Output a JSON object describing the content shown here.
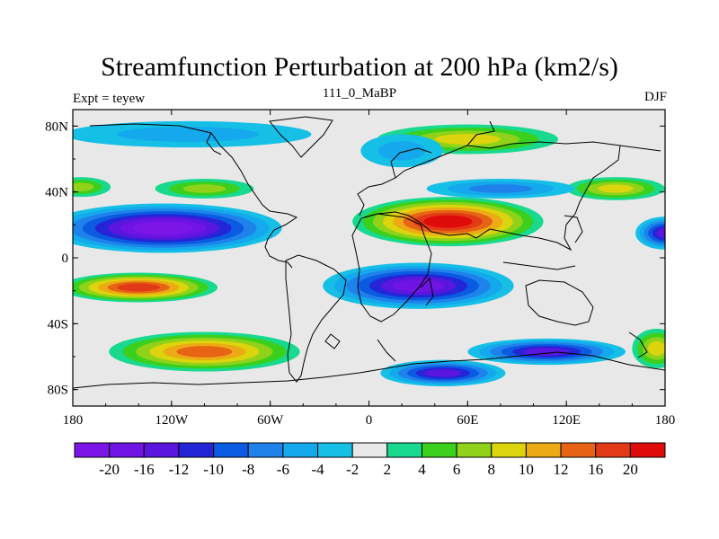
{
  "chart_data": {
    "type": "heatmap",
    "title": "Streamfunction Perturbation at 200 hPa (km2/s)",
    "left_string": "Expt = teyew",
    "center_string": "111_0_MaBP",
    "right_string": "DJF",
    "x_range": [
      -180,
      180
    ],
    "y_range": [
      -90,
      90
    ],
    "x_ticks": [
      {
        "value": -180,
        "label": "180"
      },
      {
        "value": -120,
        "label": "120W"
      },
      {
        "value": -60,
        "label": "60W"
      },
      {
        "value": 0,
        "label": "0"
      },
      {
        "value": 60,
        "label": "60E"
      },
      {
        "value": 120,
        "label": "120E"
      },
      {
        "value": 180,
        "label": "180"
      }
    ],
    "y_ticks": [
      {
        "value": 80,
        "label": "80N"
      },
      {
        "value": 40,
        "label": "40N"
      },
      {
        "value": 0,
        "label": "0"
      },
      {
        "value": -40,
        "label": "40S"
      },
      {
        "value": -80,
        "label": "80S"
      }
    ],
    "levels": [
      -20,
      -16,
      -12,
      -10,
      -8,
      -6,
      -4,
      -2,
      2,
      4,
      6,
      8,
      10,
      12,
      16,
      20
    ],
    "colors": [
      "#7b16e6",
      "#6f14e2",
      "#5a16dc",
      "#2525d8",
      "#0a5ae2",
      "#1f82ea",
      "#14a8ec",
      "#16bfe6",
      "#e8e8e8",
      "#18d98e",
      "#3ad01d",
      "#90d21a",
      "#dcd40c",
      "#ecaa14",
      "#e66414",
      "#e23a16",
      "#e00c0c"
    ],
    "features": [
      {
        "lon": -125,
        "lat": 18,
        "rx": 72,
        "ry": 15,
        "value": -20
      },
      {
        "lon": 48,
        "lat": 22,
        "rx": 58,
        "ry": 15,
        "value": 22
      },
      {
        "lon": 30,
        "lat": -17,
        "rx": 58,
        "ry": 14,
        "value": -18
      },
      {
        "lon": -140,
        "lat": -18,
        "rx": 48,
        "ry": 9,
        "value": 16
      },
      {
        "lon": -100,
        "lat": -57,
        "rx": 58,
        "ry": 12,
        "value": 14
      },
      {
        "lon": 108,
        "lat": -57,
        "rx": 48,
        "ry": 8,
        "value": -12
      },
      {
        "lon": 45,
        "lat": -70,
        "rx": 38,
        "ry": 8,
        "value": -14
      },
      {
        "lon": 60,
        "lat": 72,
        "rx": 55,
        "ry": 9,
        "value": 9
      },
      {
        "lon": 150,
        "lat": 42,
        "rx": 30,
        "ry": 7,
        "value": 8
      },
      {
        "lon": -175,
        "lat": 43,
        "rx": 18,
        "ry": 6,
        "value": 7
      },
      {
        "lon": -100,
        "lat": 42,
        "rx": 30,
        "ry": 6,
        "value": 6
      },
      {
        "lon": 180,
        "lat": 15,
        "rx": 18,
        "ry": 10,
        "value": -12
      },
      {
        "lon": -110,
        "lat": 75,
        "rx": 75,
        "ry": 8,
        "value": -5
      },
      {
        "lon": 80,
        "lat": 42,
        "rx": 45,
        "ry": 6,
        "value": -6
      },
      {
        "lon": 175,
        "lat": -55,
        "rx": 15,
        "ry": 12,
        "value": 8
      },
      {
        "lon": 20,
        "lat": 65,
        "rx": 25,
        "ry": 10,
        "value": -4
      }
    ]
  }
}
